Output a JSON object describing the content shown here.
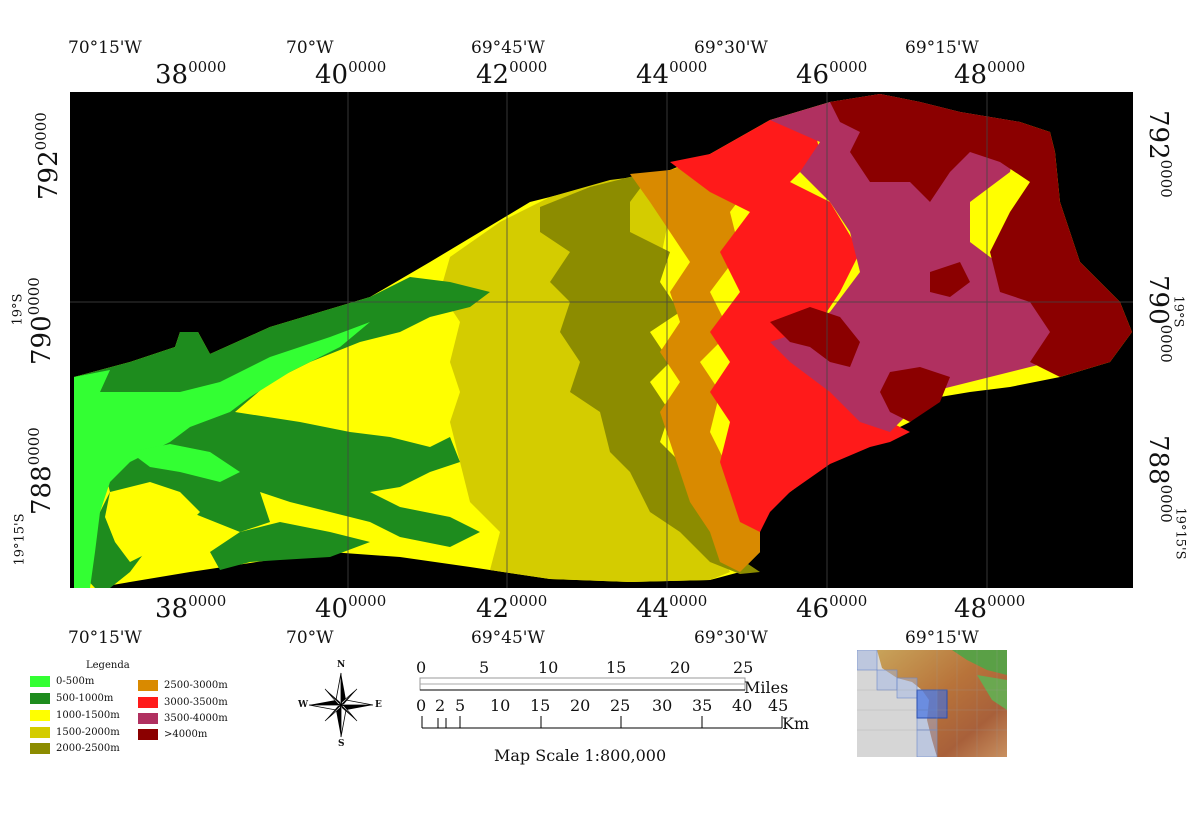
{
  "top_lon_labels": [
    "70°15'W",
    "70°W",
    "69°45'W",
    "69°30'W",
    "69°15'W"
  ],
  "bottom_lon_labels": [
    "70°15'W",
    "70°W",
    "69°45'W",
    "69°30'W",
    "69°15'W"
  ],
  "utm_x": [
    {
      "main": "38",
      "sup": "0000"
    },
    {
      "main": "40",
      "sup": "0000"
    },
    {
      "main": "42",
      "sup": "0000"
    },
    {
      "main": "44",
      "sup": "0000"
    },
    {
      "main": "46",
      "sup": "0000"
    },
    {
      "main": "48",
      "sup": "0000"
    }
  ],
  "utm_y": [
    {
      "main": "792",
      "sup": "0000"
    },
    {
      "main": "790",
      "sup": "0000"
    },
    {
      "main": "788",
      "sup": "0000"
    }
  ],
  "lat_labels": [
    "19°S",
    "19°15'S"
  ],
  "legend": {
    "title": "Legenda",
    "items": [
      {
        "label": "0-500m",
        "color": "#33ff33"
      },
      {
        "label": "500-1000m",
        "color": "#1e8c1e"
      },
      {
        "label": "1000-1500m",
        "color": "#ffff00"
      },
      {
        "label": "1500-2000m",
        "color": "#d4cc00"
      },
      {
        "label": "2000-2500m",
        "color": "#8c8c00"
      },
      {
        "label": "2500-3000m",
        "color": "#d98a00"
      },
      {
        "label": "3000-3500m",
        "color": "#ff1a1a"
      },
      {
        "label": "3500-4000m",
        "color": "#b03060"
      },
      {
        "label": ">4000m",
        "color": "#8b0000"
      }
    ]
  },
  "compass": {
    "n": "N",
    "s": "S",
    "e": "E",
    "w": "W"
  },
  "scale": {
    "miles_ticks": [
      "0",
      "5",
      "10",
      "15",
      "20",
      "25"
    ],
    "miles_unit": "Miles",
    "km_ticks": [
      "0",
      "2",
      "5",
      "10",
      "15",
      "20",
      "25",
      "30",
      "35",
      "40",
      "45"
    ],
    "km_unit": "Km",
    "title": "Map Scale 1:800,000"
  }
}
